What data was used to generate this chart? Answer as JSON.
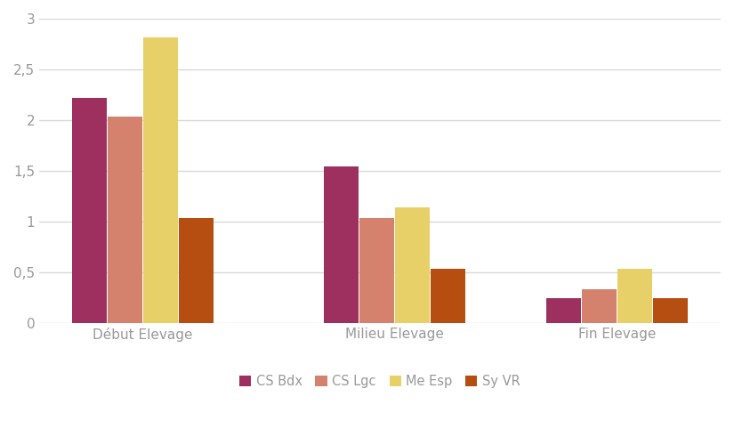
{
  "categories": [
    "Début Elevage",
    "Milieu Elevage",
    "Fin Elevage"
  ],
  "series": {
    "CS Bdx": [
      2.22,
      1.55,
      0.25
    ],
    "CS Lgc": [
      2.04,
      1.04,
      0.34
    ],
    "Me Esp": [
      2.82,
      1.14,
      0.54
    ],
    "Sy VR": [
      1.04,
      0.54,
      0.25
    ]
  },
  "colors": {
    "CS Bdx": "#9e3060",
    "CS Lgc": "#d4826e",
    "Me Esp": "#e8d068",
    "Sy VR": "#b54e10"
  },
  "ylim": [
    0,
    3
  ],
  "yticks": [
    0,
    0.5,
    1.0,
    1.5,
    2.0,
    2.5,
    3.0
  ],
  "ytick_labels": [
    "0",
    "0,5",
    "1",
    "1,5",
    "2",
    "2,5",
    "3"
  ],
  "background_color": "#ffffff",
  "grid_color": "#d8d8d8",
  "bar_width": 0.12,
  "group_positions": [
    0.25,
    1.1,
    1.85
  ],
  "legend_position": "lower center",
  "tick_color": "#aaaaaa",
  "label_color": "#999999",
  "label_fontsize": 11
}
